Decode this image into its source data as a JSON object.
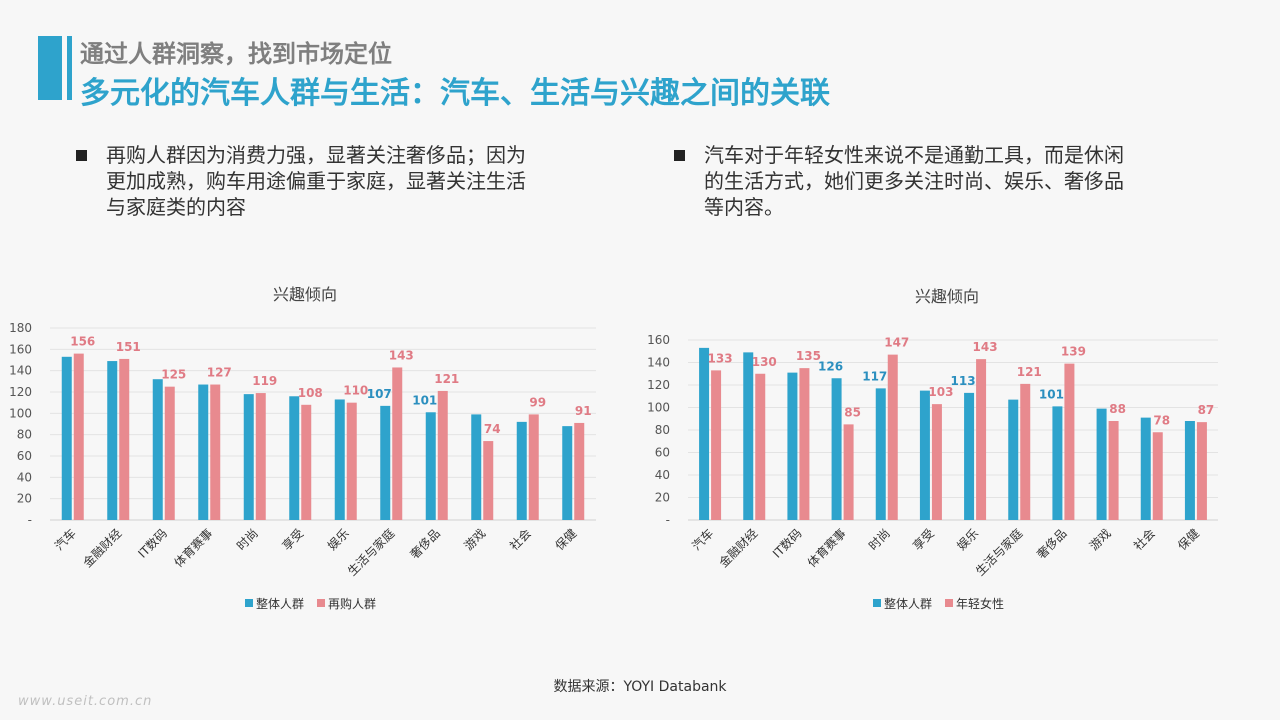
{
  "header": {
    "title": "通过人群洞察，找到市场定位",
    "subtitle": "多元化的汽车人群与生活：汽车、生活与兴趣之间的关联"
  },
  "bullets": [
    {
      "text": "再购人群因为消费力强，显著关注奢侈品；因为\n更加成熟，购车用途偏重于家庭，显著关注生活\n与家庭类的内容"
    },
    {
      "text": "汽车对于年轻女性来说不是通勤工具，而是休闲\n的生活方式，她们更多关注时尚、娱乐、奢侈品\n等内容。"
    }
  ],
  "colors": {
    "accent": "#2ea3cc",
    "blue": "#2ea3cc",
    "pink": "#e88a8f",
    "label_blue": "#2b8fbf",
    "label_pink": "#e07b85"
  },
  "chart_data": [
    {
      "type": "bar",
      "title": "兴趣倾向",
      "categories": [
        "汽车",
        "金融财经",
        "IT数码",
        "体育赛事",
        "时尚",
        "享受",
        "娱乐",
        "生活与家庭",
        "奢侈品",
        "游戏",
        "社会",
        "保健"
      ],
      "series": [
        {
          "name": "整体人群",
          "values": [
            153,
            149,
            132,
            127,
            118,
            116,
            113,
            107,
            101,
            99,
            92,
            88
          ]
        },
        {
          "name": "再购人群",
          "values": [
            156,
            151,
            125,
            127,
            119,
            108,
            110,
            143,
            121,
            74,
            99,
            91
          ]
        }
      ],
      "labels_shown": {
        "series0": [
          7,
          8
        ],
        "series1": [
          0,
          1,
          2,
          3,
          4,
          5,
          6,
          7,
          8,
          9,
          10,
          11
        ]
      },
      "ylim": [
        0,
        180
      ],
      "yticks": [
        "-",
        "20",
        "40",
        "60",
        "80",
        "100",
        "120",
        "140",
        "160",
        "180"
      ],
      "grid": true,
      "legend": "bottom"
    },
    {
      "type": "bar",
      "title": "兴趣倾向",
      "categories": [
        "汽车",
        "金融财经",
        "IT数码",
        "体育赛事",
        "时尚",
        "享受",
        "娱乐",
        "生活与家庭",
        "奢侈品",
        "游戏",
        "社会",
        "保健"
      ],
      "series": [
        {
          "name": "整体人群",
          "values": [
            153,
            149,
            131,
            126,
            117,
            115,
            113,
            107,
            101,
            99,
            91,
            88
          ]
        },
        {
          "name": "年轻女性",
          "values": [
            133,
            130,
            135,
            85,
            147,
            103,
            143,
            121,
            139,
            88,
            78,
            87
          ]
        }
      ],
      "labels_shown": {
        "series0": [
          3,
          4,
          6,
          8
        ],
        "series1": [
          0,
          1,
          2,
          3,
          4,
          5,
          6,
          7,
          8,
          9,
          10,
          11
        ]
      },
      "ylim": [
        0,
        160
      ],
      "yticks": [
        "-",
        "20",
        "40",
        "60",
        "80",
        "100",
        "120",
        "140",
        "160"
      ],
      "grid": true,
      "legend": "bottom"
    }
  ],
  "source": "数据来源：YOYI  Databank",
  "watermark": "www.useit.com.cn"
}
